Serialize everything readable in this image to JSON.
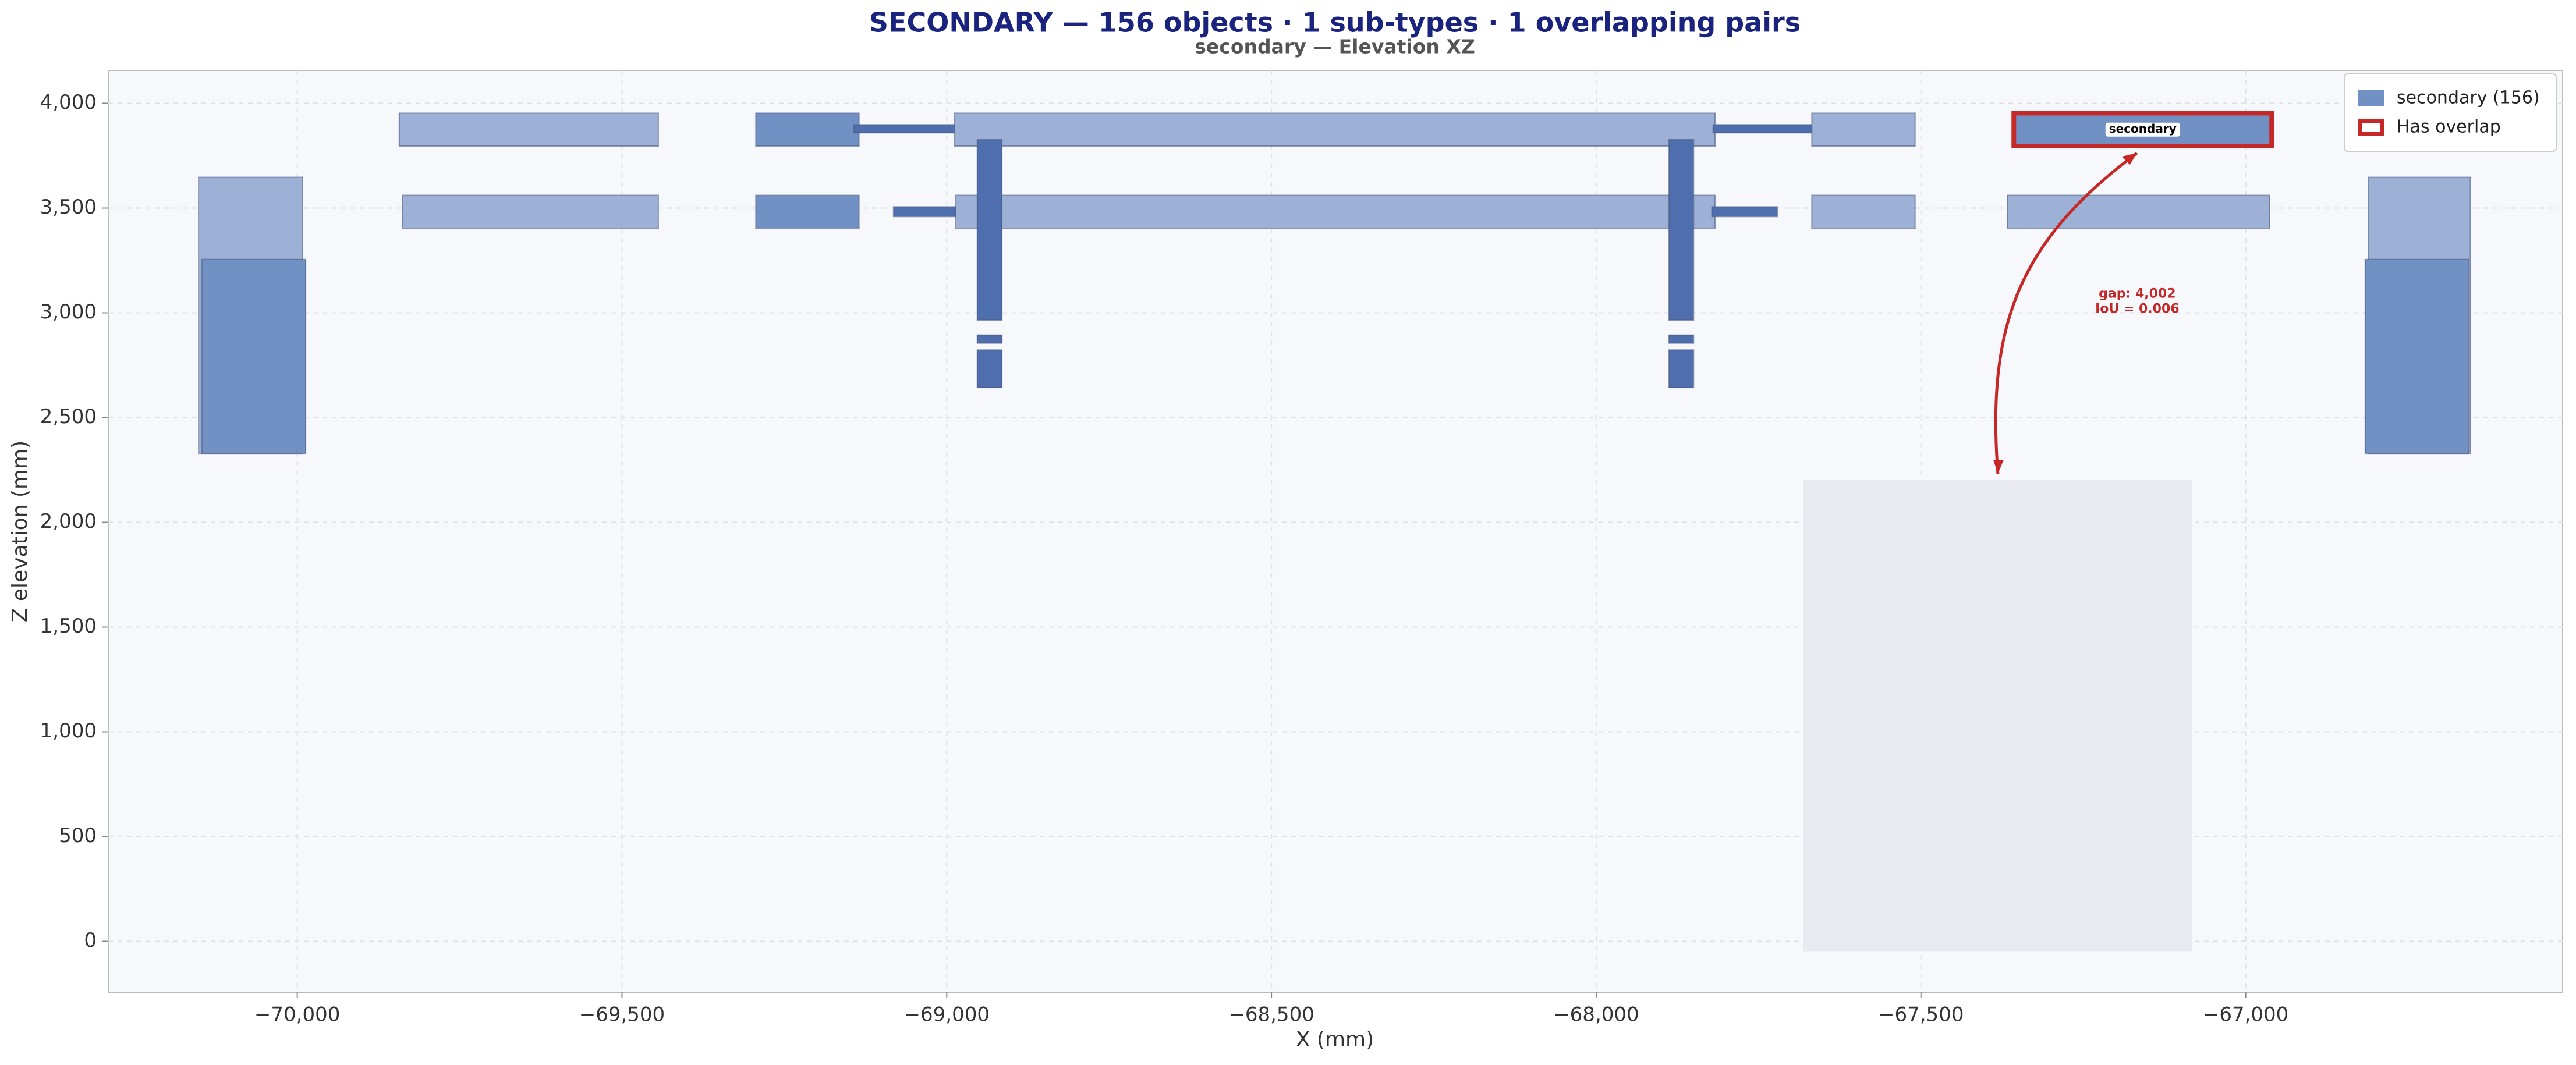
{
  "chart_data": {
    "type": "elevation",
    "title": "SECONDARY  —  156 objects  ·  1 sub-types  ·  1 overlapping pairs",
    "subtitle": "secondary  —  Elevation XZ",
    "x_label": "X  (mm)",
    "y_label": "Z elevation  (mm)",
    "xlim": [
      -70291,
      -66512
    ],
    "ylim": [
      -243,
      4157
    ],
    "xticks": [
      {
        "value": -70000,
        "label": "−70,000"
      },
      {
        "value": -69500,
        "label": "−69,500"
      },
      {
        "value": -69000,
        "label": "−69,000"
      },
      {
        "value": -68500,
        "label": "−68,500"
      },
      {
        "value": -68000,
        "label": "−68,000"
      },
      {
        "value": -67500,
        "label": "−67,500"
      },
      {
        "value": -67000,
        "label": "−67,000"
      }
    ],
    "yticks": [
      0,
      500,
      {
        "value": 1000,
        "label": "1,000"
      },
      {
        "value": 1500,
        "label": "1,500"
      },
      {
        "value": 2000,
        "label": "2,000"
      },
      {
        "value": 2500,
        "label": "2,500"
      },
      {
        "value": 3000,
        "label": "3,000"
      },
      {
        "value": 3500,
        "label": "3,500"
      },
      {
        "value": 4000,
        "label": "4,000"
      }
    ],
    "grid": true,
    "legend": "upper right",
    "legend_entries": [
      {
        "name": "secondary  (156)",
        "color": "#7191c4"
      },
      {
        "name": "Has overlap",
        "color": "#c62828"
      }
    ],
    "regions": [
      {
        "x": [
          -67681,
          -67082
        ],
        "z": [
          -47,
          2204
        ],
        "color": "#e8eaef"
      }
    ],
    "rects": [
      {
        "x": [
          -70152,
          -69992
        ],
        "z": [
          2329,
          3647
        ],
        "color": "#9db0d6"
      },
      {
        "x": [
          -70147,
          -69987
        ],
        "z": [
          2329,
          3255
        ],
        "color": "#7191c4"
      },
      {
        "x": [
          -69843,
          -69444
        ],
        "z": [
          3796,
          3953
        ],
        "color": "#9db0d6"
      },
      {
        "x": [
          -69838,
          -69444
        ],
        "z": [
          3404,
          3561
        ],
        "color": "#9db0d6"
      },
      {
        "x": [
          -69294,
          -69135
        ],
        "z": [
          3796,
          3953
        ],
        "color": "#7191c4"
      },
      {
        "x": [
          -69294,
          -69135
        ],
        "z": [
          3404,
          3561
        ],
        "color": "#7191c4"
      },
      {
        "x": [
          -69143,
          -68983
        ],
        "z": [
          3859,
          3898
        ],
        "color": "#4f6eae"
      },
      {
        "x": [
          -69082,
          -68981
        ],
        "z": [
          3459,
          3506
        ],
        "color": "#4f6eae"
      },
      {
        "x": [
          -68988,
          -67817
        ],
        "z": [
          3796,
          3953
        ],
        "color": "#9db0d6"
      },
      {
        "x": [
          -68986,
          -67817
        ],
        "z": [
          3404,
          3561
        ],
        "color": "#9db0d6"
      },
      {
        "x": [
          -68953,
          -68915
        ],
        "z": [
          2965,
          3827
        ],
        "color": "#4f6eae"
      },
      {
        "x": [
          -68953,
          -68915
        ],
        "z": [
          2855,
          2894
        ],
        "color": "#4f6eae"
      },
      {
        "x": [
          -68953,
          -68915
        ],
        "z": [
          2643,
          2823
        ],
        "color": "#4f6eae"
      },
      {
        "x": [
          -67888,
          -67850
        ],
        "z": [
          2965,
          3827
        ],
        "color": "#4f6eae"
      },
      {
        "x": [
          -67888,
          -67850
        ],
        "z": [
          2855,
          2894
        ],
        "color": "#4f6eae"
      },
      {
        "x": [
          -67888,
          -67850
        ],
        "z": [
          2643,
          2823
        ],
        "color": "#4f6eae"
      },
      {
        "x": [
          -67820,
          -67661
        ],
        "z": [
          3859,
          3898
        ],
        "color": "#4f6eae"
      },
      {
        "x": [
          -67822,
          -67721
        ],
        "z": [
          3459,
          3506
        ],
        "color": "#4f6eae"
      },
      {
        "x": [
          -67668,
          -67509
        ],
        "z": [
          3796,
          3953
        ],
        "color": "#9db0d6"
      },
      {
        "x": [
          -67668,
          -67509
        ],
        "z": [
          3404,
          3561
        ],
        "color": "#9db0d6"
      },
      {
        "x": [
          -67357,
          -66960
        ],
        "z": [
          3796,
          3953
        ],
        "color": "#7191c4",
        "overlap": true,
        "label": "secondary"
      },
      {
        "x": [
          -67367,
          -66963
        ],
        "z": [
          3404,
          3561
        ],
        "color": "#9db0d6"
      },
      {
        "x": [
          -66811,
          -66654
        ],
        "z": [
          2329,
          3647
        ],
        "color": "#9db0d6"
      },
      {
        "x": [
          -66816,
          -66657
        ],
        "z": [
          2329,
          3255
        ],
        "color": "#7191c4"
      }
    ],
    "annotation": [
      "gap: 4,002",
      "IoU = 0.006"
    ],
    "annotation_color": "#c62828"
  }
}
